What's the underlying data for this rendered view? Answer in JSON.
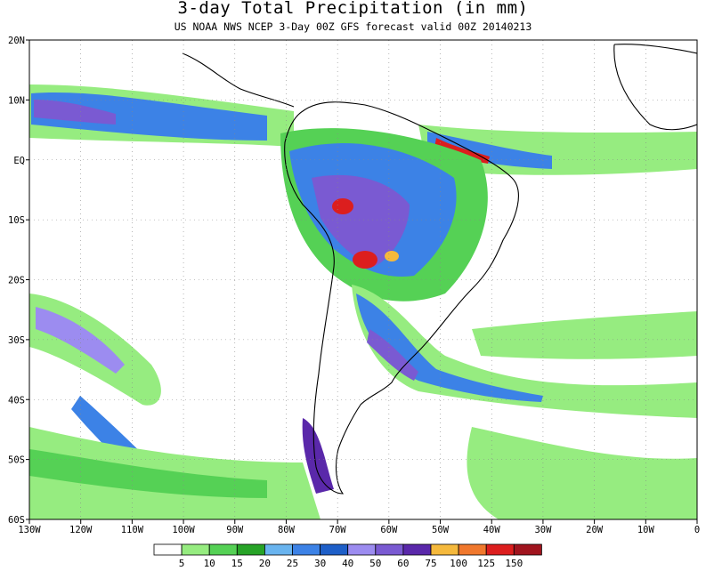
{
  "title": "3-day Total Precipitation (in mm)",
  "subtitle": "US NOAA NWS NCEP 3-Day 00Z GFS forecast valid 00Z 20140213",
  "map": {
    "lon_range": [
      -130,
      0
    ],
    "lat_range": [
      -60,
      20
    ],
    "lon_ticks": [
      {
        "value": -130,
        "label": "130W"
      },
      {
        "value": -120,
        "label": "120W"
      },
      {
        "value": -110,
        "label": "110W"
      },
      {
        "value": -100,
        "label": "100W"
      },
      {
        "value": -90,
        "label": "90W"
      },
      {
        "value": -80,
        "label": "80W"
      },
      {
        "value": -70,
        "label": "70W"
      },
      {
        "value": -60,
        "label": "60W"
      },
      {
        "value": -50,
        "label": "50W"
      },
      {
        "value": -40,
        "label": "40W"
      },
      {
        "value": -30,
        "label": "30W"
      },
      {
        "value": -20,
        "label": "20W"
      },
      {
        "value": -10,
        "label": "10W"
      },
      {
        "value": 0,
        "label": "0"
      }
    ],
    "lat_ticks": [
      {
        "value": 20,
        "label": "20N"
      },
      {
        "value": 10,
        "label": "10N"
      },
      {
        "value": 0,
        "label": "EQ"
      },
      {
        "value": -10,
        "label": "10S"
      },
      {
        "value": -20,
        "label": "20S"
      },
      {
        "value": -30,
        "label": "30S"
      },
      {
        "value": -40,
        "label": "40S"
      },
      {
        "value": -50,
        "label": "50S"
      },
      {
        "value": -60,
        "label": "60S"
      }
    ],
    "grid": "dotted"
  },
  "legend": {
    "placement": "bottom",
    "colors": [
      "#ffffff",
      "#96ec80",
      "#55d155",
      "#27a327",
      "#69b4ef",
      "#3c82e6",
      "#1e5fc8",
      "#9c8cf0",
      "#7a5ad2",
      "#5a28aa",
      "#f5b93c",
      "#f0782d",
      "#dc1e1e",
      "#a0141e"
    ],
    "labels": [
      "5",
      "10",
      "15",
      "20",
      "25",
      "30",
      "40",
      "50",
      "60",
      "75",
      "100",
      "125",
      "150"
    ]
  },
  "colors": {
    "coast": "#000000",
    "land": "#ffffff"
  }
}
